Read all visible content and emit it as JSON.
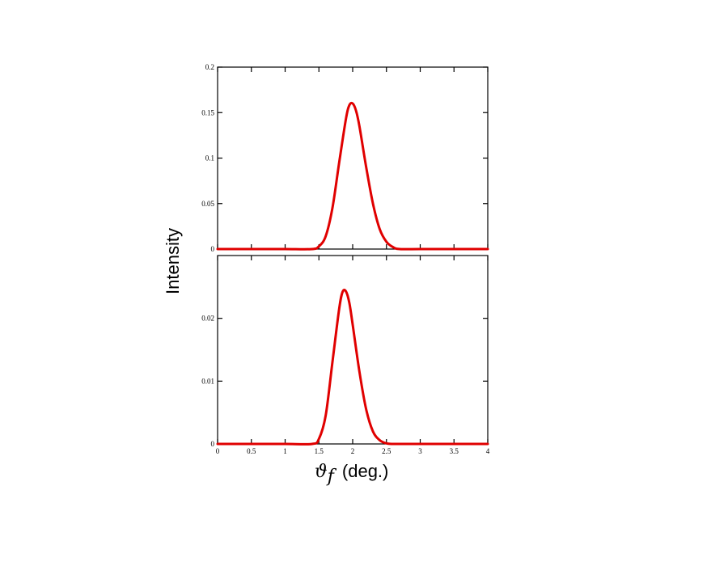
{
  "chart_data": [
    {
      "type": "line",
      "panel": "top",
      "xlim": [
        0,
        4
      ],
      "ylim": [
        0,
        0.2
      ],
      "x_ticks": [
        "0",
        "0.5",
        "1",
        "1.5",
        "2",
        "2.5",
        "3",
        "3.5",
        "4"
      ],
      "y_ticks": [
        {
          "value": 0,
          "label": "0"
        },
        {
          "value": 0.05,
          "label": "0.05"
        },
        {
          "value": 0.1,
          "label": "0.1"
        },
        {
          "value": 0.15,
          "label": "0.15"
        },
        {
          "value": 0.2,
          "label": "0.2"
        }
      ],
      "series": [
        {
          "color": "#e00000",
          "x": [
            0,
            0.5,
            1.0,
            1.4,
            1.5,
            1.6,
            1.7,
            1.8,
            1.9,
            1.95,
            2.0,
            2.05,
            2.1,
            2.2,
            2.3,
            2.4,
            2.5,
            2.6,
            2.7,
            3.0,
            3.5,
            4.0
          ],
          "y": [
            0,
            0,
            0,
            0,
            0.003,
            0.014,
            0.045,
            0.095,
            0.143,
            0.158,
            0.16,
            0.152,
            0.135,
            0.09,
            0.05,
            0.022,
            0.008,
            0.002,
            0,
            0,
            0,
            0
          ]
        }
      ],
      "grid": false
    },
    {
      "type": "line",
      "panel": "bottom",
      "xlim": [
        0,
        4
      ],
      "ylim": [
        0,
        0.03
      ],
      "x_ticks": [
        "0",
        "0.5",
        "1",
        "1.5",
        "2",
        "2.5",
        "3",
        "3.5",
        "4"
      ],
      "y_ticks": [
        {
          "value": 0,
          "label": "0"
        },
        {
          "value": 0.01,
          "label": "0.01"
        },
        {
          "value": 0.02,
          "label": "0.02"
        }
      ],
      "series": [
        {
          "color": "#e00000",
          "x": [
            0,
            0.5,
            1.0,
            1.4,
            1.5,
            1.6,
            1.7,
            1.8,
            1.85,
            1.9,
            1.95,
            2.0,
            2.1,
            2.2,
            2.3,
            2.4,
            2.5,
            2.6,
            3.0,
            3.5,
            4.0
          ],
          "y": [
            0,
            0,
            0,
            0,
            0.0008,
            0.0045,
            0.013,
            0.0215,
            0.0242,
            0.0243,
            0.0225,
            0.019,
            0.0115,
            0.0055,
            0.002,
            0.0006,
            0.0001,
            0,
            0,
            0,
            0
          ]
        }
      ],
      "grid": false
    }
  ],
  "labels": {
    "ylabel": "Intensity",
    "xlabel_symbol": "ϑ",
    "xlabel_subscript": "f",
    "xlabel_unit": "(deg.)"
  }
}
